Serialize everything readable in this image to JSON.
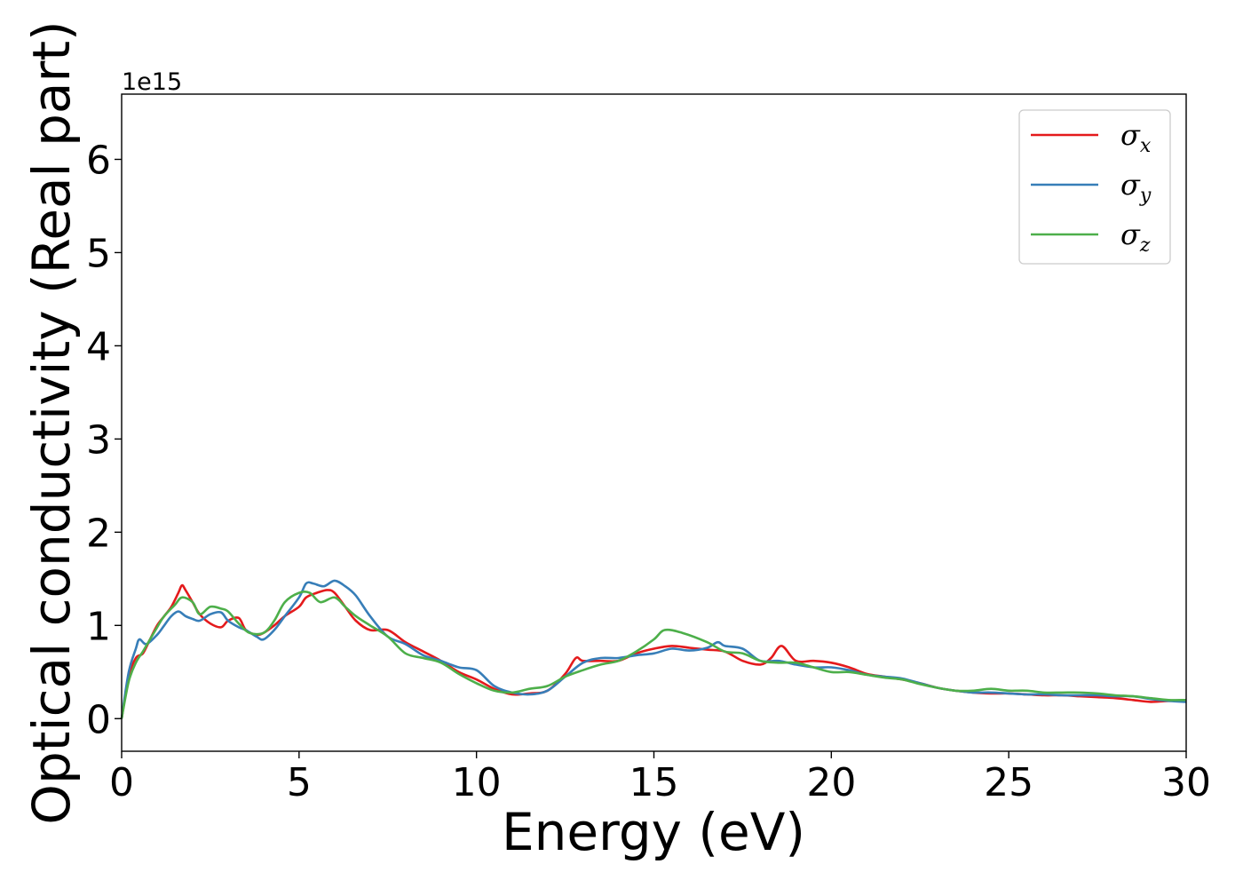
{
  "chart_data": {
    "type": "line",
    "title": "",
    "xlabel": "Energy (eV)",
    "ylabel": "Optical conductivity (Real part)",
    "y_offset_label": "1e15",
    "xlim": [
      0,
      30
    ],
    "ylim": [
      -0.35,
      6.7
    ],
    "x_ticks": [
      0,
      5,
      10,
      15,
      20,
      25,
      30
    ],
    "x_tick_labels": [
      "0",
      "5",
      "10",
      "15",
      "20",
      "25",
      "30"
    ],
    "y_ticks": [
      0,
      1,
      2,
      3,
      4,
      5,
      6
    ],
    "y_tick_labels": [
      "0",
      "1",
      "2",
      "3",
      "4",
      "5",
      "6"
    ],
    "grid": false,
    "legend_position": "top-right",
    "series": [
      {
        "name": "σx",
        "symbol": "σ",
        "subscript": "x",
        "color": "#e41a1c",
        "x": [
          0,
          0.2,
          0.4,
          0.6,
          0.8,
          1.0,
          1.2,
          1.4,
          1.6,
          1.7,
          1.8,
          2.0,
          2.2,
          2.5,
          2.8,
          3.0,
          3.3,
          3.5,
          3.8,
          4.0,
          4.3,
          4.6,
          5.0,
          5.2,
          5.5,
          5.8,
          6.0,
          6.3,
          6.6,
          7.0,
          7.5,
          8.0,
          8.5,
          9.0,
          9.5,
          10.0,
          10.5,
          11.0,
          11.5,
          12.0,
          12.5,
          12.8,
          13.0,
          13.5,
          14.0,
          14.5,
          15.0,
          15.5,
          16.0,
          16.5,
          17.0,
          17.5,
          18.0,
          18.3,
          18.6,
          19.0,
          19.5,
          20.0,
          20.5,
          21.0,
          21.5,
          22.0,
          22.5,
          23.0,
          23.5,
          24.0,
          24.5,
          25.0,
          25.5,
          26.0,
          26.5,
          27.0,
          27.5,
          28.0,
          28.5,
          29.0,
          29.5,
          30.0
        ],
        "y": [
          0.0,
          0.45,
          0.65,
          0.7,
          0.85,
          1.0,
          1.1,
          1.2,
          1.35,
          1.43,
          1.38,
          1.25,
          1.12,
          1.02,
          0.98,
          1.05,
          1.08,
          0.95,
          0.9,
          0.92,
          1.0,
          1.1,
          1.2,
          1.3,
          1.35,
          1.38,
          1.35,
          1.2,
          1.05,
          0.95,
          0.95,
          0.82,
          0.72,
          0.62,
          0.5,
          0.42,
          0.32,
          0.26,
          0.27,
          0.3,
          0.48,
          0.65,
          0.62,
          0.62,
          0.62,
          0.7,
          0.75,
          0.78,
          0.76,
          0.74,
          0.72,
          0.62,
          0.58,
          0.65,
          0.78,
          0.62,
          0.62,
          0.6,
          0.55,
          0.48,
          0.45,
          0.42,
          0.38,
          0.33,
          0.3,
          0.28,
          0.27,
          0.27,
          0.26,
          0.25,
          0.25,
          0.24,
          0.23,
          0.22,
          0.2,
          0.18,
          0.19,
          0.2
        ]
      },
      {
        "name": "σy",
        "symbol": "σ",
        "subscript": "y",
        "color": "#377eb8",
        "x": [
          0,
          0.2,
          0.4,
          0.5,
          0.7,
          1.0,
          1.2,
          1.4,
          1.6,
          1.8,
          2.0,
          2.2,
          2.5,
          2.8,
          3.0,
          3.3,
          3.5,
          3.8,
          4.0,
          4.3,
          4.6,
          5.0,
          5.2,
          5.4,
          5.7,
          6.0,
          6.3,
          6.6,
          7.0,
          7.5,
          8.0,
          8.5,
          9.0,
          9.5,
          10.0,
          10.5,
          11.0,
          11.5,
          12.0,
          12.5,
          13.0,
          13.5,
          14.0,
          14.5,
          15.0,
          15.5,
          16.0,
          16.5,
          16.8,
          17.0,
          17.5,
          18.0,
          18.5,
          19.0,
          19.5,
          20.0,
          20.5,
          21.0,
          21.5,
          22.0,
          22.5,
          23.0,
          23.5,
          24.0,
          24.5,
          25.0,
          25.5,
          26.0,
          26.5,
          27.0,
          27.5,
          28.0,
          28.5,
          29.0,
          29.5,
          30.0
        ],
        "y": [
          0.0,
          0.5,
          0.75,
          0.85,
          0.8,
          0.9,
          1.0,
          1.1,
          1.15,
          1.1,
          1.07,
          1.05,
          1.12,
          1.14,
          1.05,
          0.98,
          0.95,
          0.88,
          0.85,
          0.95,
          1.1,
          1.3,
          1.45,
          1.45,
          1.42,
          1.48,
          1.42,
          1.32,
          1.1,
          0.88,
          0.8,
          0.68,
          0.62,
          0.55,
          0.52,
          0.35,
          0.28,
          0.26,
          0.3,
          0.45,
          0.6,
          0.65,
          0.65,
          0.68,
          0.7,
          0.75,
          0.73,
          0.76,
          0.82,
          0.78,
          0.75,
          0.62,
          0.62,
          0.58,
          0.55,
          0.55,
          0.52,
          0.47,
          0.45,
          0.43,
          0.38,
          0.33,
          0.3,
          0.28,
          0.28,
          0.27,
          0.26,
          0.26,
          0.25,
          0.25,
          0.25,
          0.24,
          0.24,
          0.21,
          0.19,
          0.18
        ]
      },
      {
        "name": "σz",
        "symbol": "σ",
        "subscript": "z",
        "color": "#4daf4a",
        "x": [
          0,
          0.2,
          0.4,
          0.6,
          0.8,
          1.0,
          1.2,
          1.5,
          1.7,
          2.0,
          2.2,
          2.5,
          2.8,
          3.0,
          3.3,
          3.6,
          4.0,
          4.3,
          4.6,
          5.0,
          5.3,
          5.6,
          6.0,
          6.3,
          6.6,
          7.0,
          7.5,
          8.0,
          8.5,
          9.0,
          9.5,
          10.0,
          10.5,
          11.0,
          11.5,
          12.0,
          12.5,
          13.0,
          13.5,
          14.0,
          14.5,
          15.0,
          15.3,
          15.8,
          16.5,
          17.0,
          17.5,
          18.0,
          18.5,
          19.0,
          19.5,
          20.0,
          20.5,
          21.0,
          21.5,
          22.0,
          22.5,
          23.0,
          23.5,
          24.0,
          24.5,
          25.0,
          25.5,
          26.0,
          26.5,
          27.0,
          27.5,
          28.0,
          28.5,
          29.0,
          29.5,
          30.0
        ],
        "y": [
          0.0,
          0.4,
          0.6,
          0.72,
          0.85,
          0.98,
          1.1,
          1.22,
          1.3,
          1.25,
          1.12,
          1.2,
          1.18,
          1.15,
          1.02,
          0.92,
          0.92,
          1.05,
          1.25,
          1.35,
          1.35,
          1.25,
          1.3,
          1.2,
          1.1,
          1.0,
          0.88,
          0.7,
          0.65,
          0.6,
          0.48,
          0.38,
          0.3,
          0.28,
          0.32,
          0.35,
          0.45,
          0.52,
          0.58,
          0.62,
          0.72,
          0.85,
          0.95,
          0.92,
          0.82,
          0.72,
          0.7,
          0.62,
          0.6,
          0.6,
          0.55,
          0.5,
          0.5,
          0.47,
          0.44,
          0.42,
          0.37,
          0.33,
          0.3,
          0.3,
          0.32,
          0.3,
          0.3,
          0.28,
          0.28,
          0.28,
          0.27,
          0.25,
          0.24,
          0.22,
          0.2,
          0.2
        ]
      }
    ]
  }
}
